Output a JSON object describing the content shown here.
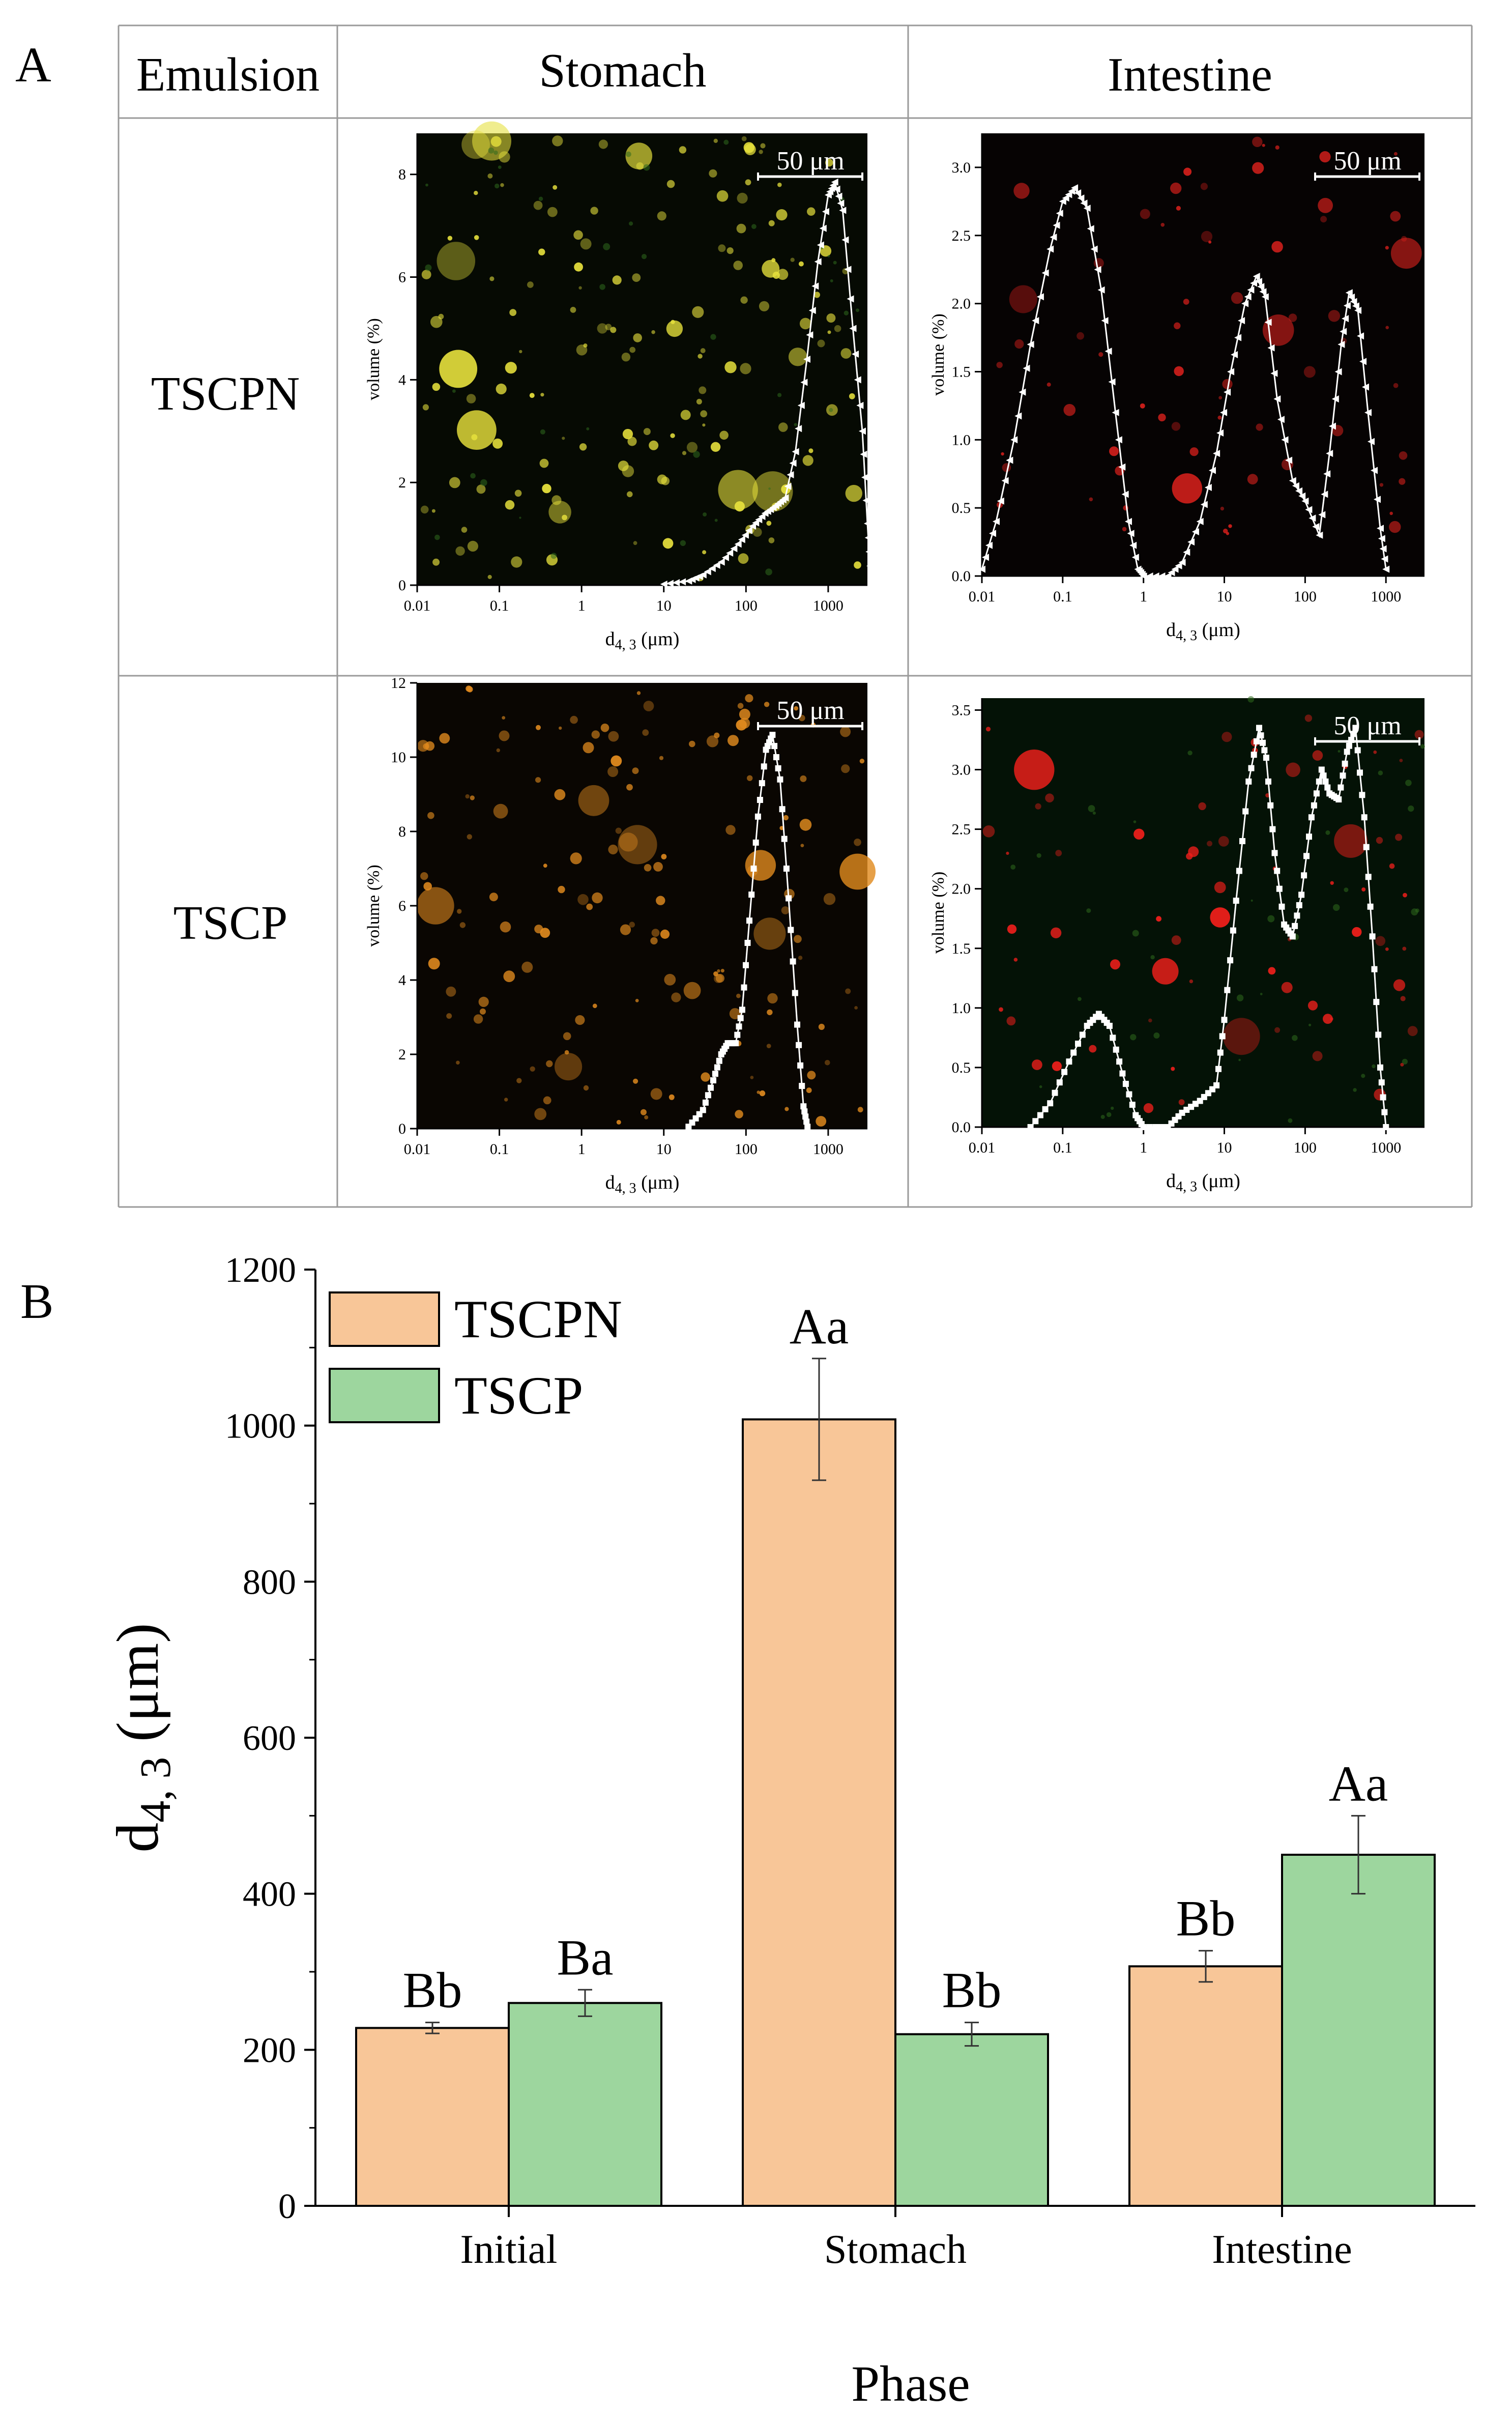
{
  "panel_a": {
    "label": "A",
    "header": {
      "emulsion": "Emulsion",
      "stomach": "Stomach",
      "intestine": "Intestine"
    },
    "rows": [
      "TSCPN",
      "TSCP"
    ],
    "scale_bar": "50 μm",
    "ylabel": "volume (%)",
    "xlabel_main": "d",
    "xlabel_sub": "4, 3",
    "xlabel_unit": " (μm)",
    "x_ticks": [
      "0.01",
      "0.1",
      "1",
      "10",
      "100",
      "1000"
    ],
    "cells": [
      {
        "row": "TSCPN",
        "phase": "Stomach",
        "background": "#060a03",
        "dot_color": "#e6e03c",
        "y_ticks": [
          "0",
          "2",
          "4",
          "6",
          "8"
        ],
        "ylim": [
          0,
          8.8
        ],
        "marker": "triangle"
      },
      {
        "row": "TSCPN",
        "phase": "Intestine",
        "background": "#060303",
        "dot_color": "#d8201c",
        "y_ticks": [
          "0.0",
          "0.5",
          "1.0",
          "1.5",
          "2.0",
          "2.5",
          "3.0"
        ],
        "ylim": [
          0,
          3.25
        ],
        "marker": "triangle"
      },
      {
        "row": "TSCP",
        "phase": "Stomach",
        "background": "#0a0602",
        "dot_color": "#e08a1e",
        "y_ticks": [
          "0",
          "2",
          "4",
          "6",
          "8",
          "10",
          "12"
        ],
        "ylim": [
          0,
          12
        ],
        "marker": "square"
      },
      {
        "row": "TSCP",
        "phase": "Intestine",
        "background": "#041206",
        "dot_color": "#ee1f1b",
        "y_ticks": [
          "0.0",
          "0.5",
          "1.0",
          "1.5",
          "2.0",
          "2.5",
          "3.0",
          "3.5"
        ],
        "ylim": [
          0,
          3.6
        ],
        "marker": "square"
      }
    ]
  },
  "panel_b": {
    "label": "B"
  },
  "chart_data": [
    {
      "type": "line",
      "panel": "A",
      "row": "TSCPN",
      "phase": "Stomach",
      "xscale": "log",
      "xlim": [
        0.01,
        3000
      ],
      "ylim": [
        0,
        8.8
      ],
      "ylabel": "volume (%)",
      "xlabel": "d4, 3 (μm)",
      "points": [
        [
          10,
          0.02
        ],
        [
          20,
          0.08
        ],
        [
          30,
          0.2
        ],
        [
          50,
          0.45
        ],
        [
          80,
          0.8
        ],
        [
          120,
          1.15
        ],
        [
          170,
          1.4
        ],
        [
          230,
          1.55
        ],
        [
          300,
          1.7
        ],
        [
          400,
          2.6
        ],
        [
          550,
          4.4
        ],
        [
          750,
          6.3
        ],
        [
          1000,
          7.6
        ],
        [
          1200,
          7.85
        ],
        [
          1500,
          7.3
        ],
        [
          2000,
          5.0
        ],
        [
          2600,
          3.0
        ],
        [
          3000,
          1.2
        ],
        [
          3300,
          0.1
        ]
      ]
    },
    {
      "type": "line",
      "panel": "A",
      "row": "TSCPN",
      "phase": "Intestine",
      "xscale": "log",
      "xlim": [
        0.01,
        3000
      ],
      "ylim": [
        0,
        3.25
      ],
      "ylabel": "volume (%)",
      "xlabel": "d4, 3 (μm)",
      "points": [
        [
          0.01,
          0.05
        ],
        [
          0.015,
          0.4
        ],
        [
          0.025,
          1.0
        ],
        [
          0.04,
          1.7
        ],
        [
          0.07,
          2.4
        ],
        [
          0.1,
          2.75
        ],
        [
          0.14,
          2.85
        ],
        [
          0.2,
          2.7
        ],
        [
          0.3,
          2.1
        ],
        [
          0.45,
          1.2
        ],
        [
          0.65,
          0.4
        ],
        [
          0.85,
          0.05
        ],
        [
          1,
          0.0
        ],
        [
          2,
          0.0
        ],
        [
          3,
          0.1
        ],
        [
          5,
          0.4
        ],
        [
          8,
          0.9
        ],
        [
          12,
          1.5
        ],
        [
          18,
          2.0
        ],
        [
          25,
          2.2
        ],
        [
          32,
          2.05
        ],
        [
          45,
          1.3
        ],
        [
          70,
          0.7
        ],
        [
          100,
          0.55
        ],
        [
          150,
          0.3
        ],
        [
          200,
          0.9
        ],
        [
          280,
          1.7
        ],
        [
          350,
          2.08
        ],
        [
          450,
          1.95
        ],
        [
          600,
          1.2
        ],
        [
          850,
          0.35
        ],
        [
          1000,
          0.05
        ]
      ]
    },
    {
      "type": "line",
      "panel": "A",
      "row": "TSCP",
      "phase": "Stomach",
      "xscale": "log",
      "xlim": [
        0.01,
        3000
      ],
      "ylim": [
        0,
        12
      ],
      "ylabel": "volume (%)",
      "xlabel": "d4, 3 (μm)",
      "points": [
        [
          20,
          0.05
        ],
        [
          30,
          0.5
        ],
        [
          40,
          1.3
        ],
        [
          50,
          2.0
        ],
        [
          60,
          2.3
        ],
        [
          75,
          2.3
        ],
        [
          90,
          3.2
        ],
        [
          110,
          5.6
        ],
        [
          140,
          8.4
        ],
        [
          175,
          10.2
        ],
        [
          210,
          10.6
        ],
        [
          260,
          9.4
        ],
        [
          330,
          6.2
        ],
        [
          420,
          2.8
        ],
        [
          500,
          0.6
        ],
        [
          560,
          0.05
        ]
      ]
    },
    {
      "type": "line",
      "panel": "A",
      "row": "TSCP",
      "phase": "Intestine",
      "xscale": "log",
      "xlim": [
        0.01,
        3000
      ],
      "ylim": [
        0,
        3.6
      ],
      "ylabel": "volume (%)",
      "xlabel": "d4, 3 (μm)",
      "points": [
        [
          0.04,
          0.0
        ],
        [
          0.07,
          0.2
        ],
        [
          0.12,
          0.55
        ],
        [
          0.2,
          0.85
        ],
        [
          0.28,
          0.95
        ],
        [
          0.38,
          0.85
        ],
        [
          0.55,
          0.45
        ],
        [
          0.8,
          0.1
        ],
        [
          1.0,
          0.0
        ],
        [
          2.0,
          0.0
        ],
        [
          3,
          0.12
        ],
        [
          5,
          0.22
        ],
        [
          8,
          0.35
        ],
        [
          10,
          0.9
        ],
        [
          14,
          1.9
        ],
        [
          20,
          2.9
        ],
        [
          27,
          3.35
        ],
        [
          33,
          3.1
        ],
        [
          42,
          2.3
        ],
        [
          55,
          1.7
        ],
        [
          70,
          1.6
        ],
        [
          90,
          1.95
        ],
        [
          120,
          2.6
        ],
        [
          160,
          3.0
        ],
        [
          200,
          2.8
        ],
        [
          260,
          2.75
        ],
        [
          330,
          3.15
        ],
        [
          420,
          3.35
        ],
        [
          540,
          2.6
        ],
        [
          680,
          1.6
        ],
        [
          850,
          0.5
        ],
        [
          1000,
          0.0
        ]
      ]
    },
    {
      "type": "bar",
      "panel": "B",
      "categories": [
        "Initial",
        "Stomach",
        "Intestine"
      ],
      "series": [
        {
          "name": "TSCPN",
          "color": "#f8c698",
          "values": [
            228,
            1008,
            307
          ],
          "errors": [
            7,
            78,
            20
          ],
          "labels": [
            "Bb",
            "Aa",
            "Bb"
          ]
        },
        {
          "name": "TSCP",
          "color": "#9dd69e",
          "values": [
            260,
            220,
            450
          ],
          "errors": [
            17,
            15,
            50
          ],
          "labels": [
            "Ba",
            "Bb",
            "Aa"
          ]
        }
      ],
      "xlabel": "Phase",
      "ylabel_main": "d",
      "ylabel_sub": "4, 3",
      "ylabel_unit": " (μm)",
      "ylim": [
        0,
        1200
      ],
      "y_ticks": [
        0,
        200,
        400,
        600,
        800,
        1000,
        1200
      ],
      "legend": "top-left"
    }
  ]
}
